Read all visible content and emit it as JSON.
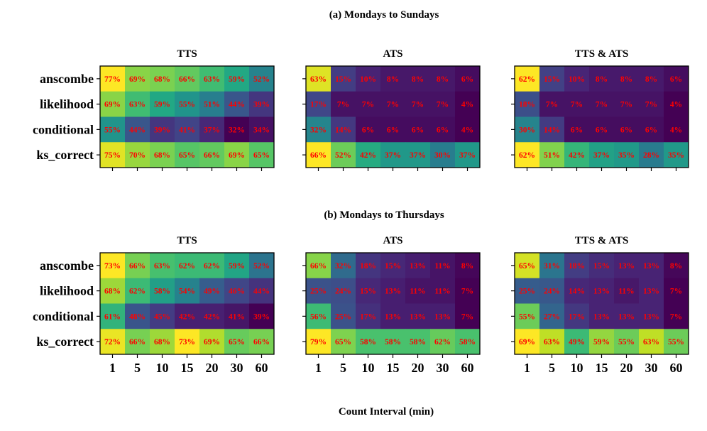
{
  "figure": {
    "xlabel": "Count Interval (min)"
  },
  "chart_data": [
    {
      "type": "heatmap",
      "panel_group": "(a) Mondays to Sundays",
      "title": "TTS",
      "x": [
        "1",
        "5",
        "10",
        "15",
        "20",
        "30",
        "60"
      ],
      "y": [
        "anscombe",
        "likelihood",
        "conditional",
        "ks_correct"
      ],
      "values": [
        [
          77,
          69,
          68,
          66,
          63,
          59,
          52
        ],
        [
          69,
          63,
          59,
          55,
          51,
          44,
          39
        ],
        [
          55,
          44,
          39,
          41,
          37,
          32,
          34
        ],
        [
          75,
          70,
          68,
          65,
          66,
          69,
          65
        ]
      ]
    },
    {
      "type": "heatmap",
      "panel_group": "(a) Mondays to Sundays",
      "title": "ATS",
      "x": [
        "1",
        "5",
        "10",
        "15",
        "20",
        "30",
        "60"
      ],
      "y": [
        "anscombe",
        "likelihood",
        "conditional",
        "ks_correct"
      ],
      "values": [
        [
          63,
          15,
          10,
          8,
          8,
          8,
          6
        ],
        [
          17,
          7,
          7,
          7,
          7,
          7,
          4
        ],
        [
          32,
          14,
          6,
          6,
          6,
          6,
          4
        ],
        [
          66,
          52,
          42,
          37,
          37,
          30,
          37
        ]
      ]
    },
    {
      "type": "heatmap",
      "panel_group": "(a) Mondays to Sundays",
      "title": "TTS & ATS",
      "x": [
        "1",
        "5",
        "10",
        "15",
        "20",
        "30",
        "60"
      ],
      "y": [
        "anscombe",
        "likelihood",
        "conditional",
        "ks_correct"
      ],
      "values": [
        [
          62,
          15,
          10,
          8,
          8,
          8,
          6
        ],
        [
          18,
          7,
          7,
          7,
          7,
          7,
          4
        ],
        [
          30,
          14,
          6,
          6,
          6,
          6,
          4
        ],
        [
          62,
          51,
          42,
          37,
          35,
          28,
          35
        ]
      ]
    },
    {
      "type": "heatmap",
      "panel_group": "(b) Mondays to Thursdays",
      "title": "TTS",
      "x": [
        "1",
        "5",
        "10",
        "15",
        "20",
        "30",
        "60"
      ],
      "y": [
        "anscombe",
        "likelihood",
        "conditional",
        "ks_correct"
      ],
      "values": [
        [
          73,
          66,
          63,
          62,
          62,
          59,
          52
        ],
        [
          68,
          62,
          58,
          54,
          49,
          46,
          44
        ],
        [
          61,
          48,
          45,
          42,
          42,
          41,
          39
        ],
        [
          72,
          66,
          68,
          73,
          69,
          65,
          66
        ]
      ]
    },
    {
      "type": "heatmap",
      "panel_group": "(b) Mondays to Thursdays",
      "title": "ATS",
      "x": [
        "1",
        "5",
        "10",
        "15",
        "20",
        "30",
        "60"
      ],
      "y": [
        "anscombe",
        "likelihood",
        "conditional",
        "ks_correct"
      ],
      "values": [
        [
          66,
          32,
          18,
          15,
          13,
          11,
          8
        ],
        [
          25,
          24,
          15,
          13,
          11,
          11,
          7
        ],
        [
          56,
          25,
          17,
          13,
          13,
          13,
          7
        ],
        [
          79,
          65,
          58,
          58,
          58,
          62,
          58
        ]
      ]
    },
    {
      "type": "heatmap",
      "panel_group": "(b) Mondays to Thursdays",
      "title": "TTS & ATS",
      "x": [
        "1",
        "5",
        "10",
        "15",
        "20",
        "30",
        "60"
      ],
      "y": [
        "anscombe",
        "likelihood",
        "conditional",
        "ks_correct"
      ],
      "values": [
        [
          65,
          31,
          18,
          15,
          13,
          13,
          8
        ],
        [
          25,
          24,
          14,
          13,
          11,
          13,
          7
        ],
        [
          55,
          27,
          17,
          13,
          13,
          13,
          7
        ],
        [
          69,
          63,
          49,
          59,
          55,
          63,
          55
        ]
      ]
    }
  ],
  "colors": {
    "cell_label": "#ff0000",
    "text": "#000000",
    "colormap": "viridis"
  }
}
